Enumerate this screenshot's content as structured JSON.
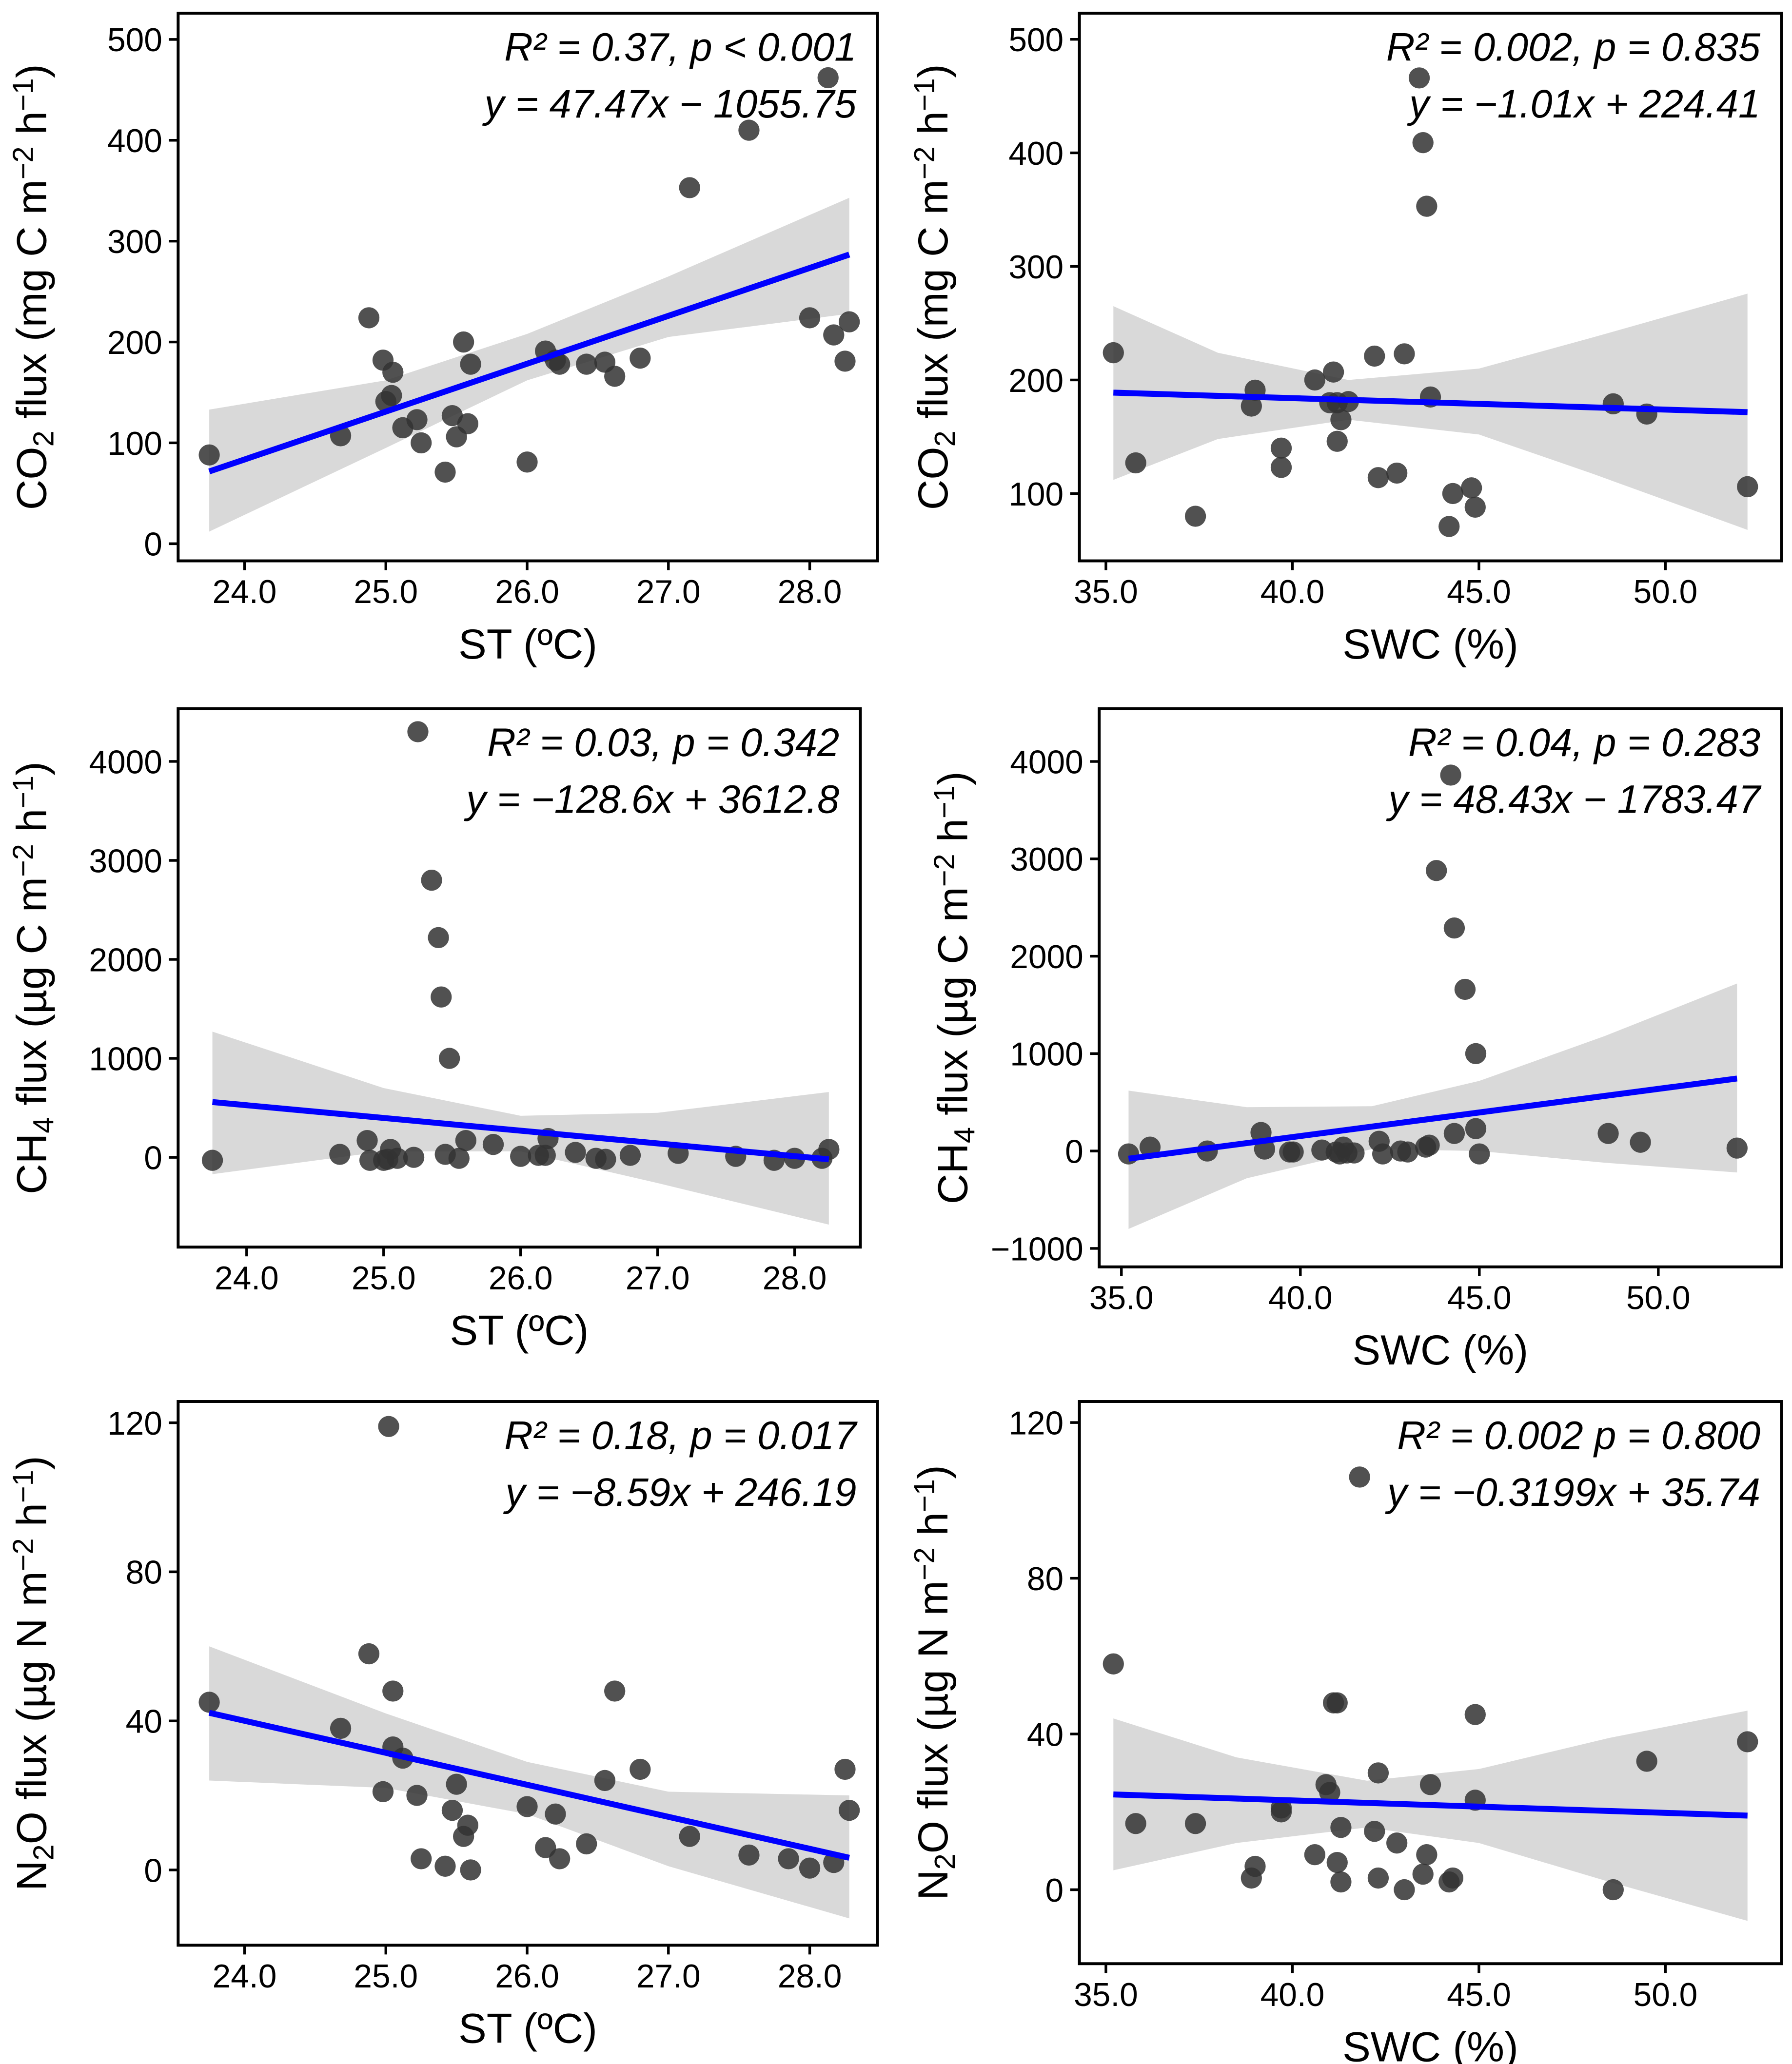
{
  "chart_data": [
    {
      "type": "scatter",
      "xlabel": "ST (ºC)",
      "ylabel": {
        "pre": "CO",
        "sub": "2",
        "mid": " flux (mg C m",
        "sup1": "−2",
        "mid2": " h",
        "sup2": "−1",
        "post": ")"
      },
      "annotation": [
        "R² = 0.37, p < 0.001",
        "y = 47.47x − 1055.75"
      ],
      "xlim": [
        23.53,
        28.48
      ],
      "ylim": [
        -17,
        526
      ],
      "xticks": [
        24,
        25,
        26,
        27,
        28
      ],
      "xtick_labels": [
        "24.0",
        "25.0",
        "26.0",
        "27.0",
        "28.0"
      ],
      "yticks": [
        0,
        100,
        200,
        300,
        400,
        500
      ],
      "ytick_labels": [
        "0",
        "100",
        "200",
        "300",
        "400",
        "500"
      ],
      "fit": {
        "slope": 47.47,
        "intercept": -1055.75,
        "x_range": [
          23.75,
          28.28
        ]
      },
      "ci": [
        [
          23.75,
          12,
          133
        ],
        [
          25.0,
          95,
          162
        ],
        [
          26.0,
          162,
          208
        ],
        [
          27.0,
          205,
          265
        ],
        [
          28.28,
          228,
          343
        ]
      ],
      "points": [
        [
          23.75,
          88
        ],
        [
          24.68,
          107
        ],
        [
          24.88,
          224
        ],
        [
          24.98,
          182
        ],
        [
          25.0,
          141
        ],
        [
          25.04,
          147
        ],
        [
          25.05,
          170
        ],
        [
          25.12,
          115
        ],
        [
          25.22,
          123
        ],
        [
          25.25,
          100
        ],
        [
          25.42,
          71
        ],
        [
          25.47,
          127
        ],
        [
          25.5,
          106
        ],
        [
          25.55,
          200
        ],
        [
          25.58,
          119
        ],
        [
          25.6,
          178
        ],
        [
          26.0,
          81
        ],
        [
          26.13,
          191
        ],
        [
          26.2,
          182
        ],
        [
          26.23,
          178
        ],
        [
          26.42,
          178
        ],
        [
          26.55,
          180
        ],
        [
          26.62,
          166
        ],
        [
          26.8,
          184
        ],
        [
          27.15,
          353
        ],
        [
          27.57,
          410
        ],
        [
          28.0,
          224
        ],
        [
          28.13,
          462
        ],
        [
          28.17,
          207
        ],
        [
          28.25,
          181
        ],
        [
          28.28,
          220
        ]
      ]
    },
    {
      "type": "scatter",
      "xlabel": "SWC (%)",
      "ylabel": {
        "pre": "CO",
        "sub": "2",
        "mid": " flux (mg C m",
        "sup1": "−2",
        "mid2": " h",
        "sup2": "−1",
        "post": ")"
      },
      "annotation": [
        "R² = 0.002, p = 0.835",
        "y = −1.01x + 224.41"
      ],
      "xlim": [
        34.29,
        53.11
      ],
      "ylim": [
        40.7,
        523
      ],
      "xticks": [
        35,
        40,
        45,
        50
      ],
      "xtick_labels": [
        "35.0",
        "40.0",
        "45.0",
        "50.0"
      ],
      "yticks": [
        100,
        200,
        300,
        400,
        500
      ],
      "ytick_labels": [
        "100",
        "200",
        "300",
        "400",
        "500"
      ],
      "fit": {
        "slope": -1.01,
        "intercept": 224.41,
        "x_range": [
          35.2,
          52.2
        ]
      },
      "ci": [
        [
          35.2,
          112,
          265
        ],
        [
          38.0,
          148,
          224
        ],
        [
          41.5,
          165,
          200
        ],
        [
          45.0,
          152,
          210
        ],
        [
          48.0,
          118,
          237
        ],
        [
          52.2,
          68,
          276
        ]
      ],
      "points": [
        [
          35.2,
          224
        ],
        [
          35.8,
          127
        ],
        [
          37.4,
          80
        ],
        [
          38.9,
          177
        ],
        [
          39.0,
          191
        ],
        [
          39.7,
          140
        ],
        [
          39.7,
          123
        ],
        [
          40.6,
          200
        ],
        [
          41.0,
          180
        ],
        [
          41.1,
          207
        ],
        [
          41.2,
          146
        ],
        [
          41.2,
          180
        ],
        [
          41.3,
          165
        ],
        [
          41.5,
          181
        ],
        [
          42.2,
          221
        ],
        [
          42.3,
          114
        ],
        [
          42.8,
          118
        ],
        [
          43.0,
          223
        ],
        [
          43.4,
          466
        ],
        [
          43.5,
          409
        ],
        [
          43.6,
          353
        ],
        [
          43.7,
          185
        ],
        [
          44.2,
          71
        ],
        [
          44.3,
          100
        ],
        [
          44.8,
          105
        ],
        [
          44.9,
          88
        ],
        [
          48.6,
          179
        ],
        [
          49.5,
          170
        ],
        [
          52.2,
          106
        ]
      ]
    },
    {
      "type": "scatter",
      "xlabel": "ST (ºC)",
      "ylabel": {
        "pre": "CH",
        "sub": "4",
        "mid": " flux (µg C m",
        "sup1": "−2",
        "mid2": " h",
        "sup2": "−1",
        "post": ")"
      },
      "annotation": [
        "R² = 0.03, p = 0.342",
        "y = −128.6x + 3612.8"
      ],
      "xlim": [
        23.5,
        28.48
      ],
      "ylim": [
        -907,
        4533
      ],
      "xticks": [
        24,
        25,
        26,
        27,
        28
      ],
      "xtick_labels": [
        "24.0",
        "25.0",
        "26.0",
        "27.0",
        "28.0"
      ],
      "yticks": [
        0,
        1000,
        2000,
        3000,
        4000
      ],
      "ytick_labels": [
        "0",
        "1000",
        "2000",
        "3000",
        "4000"
      ],
      "fit": {
        "slope": -128.6,
        "intercept": 3612.8,
        "x_range": [
          23.75,
          28.25
        ]
      },
      "ci": [
        [
          23.75,
          -170,
          1270
        ],
        [
          25.0,
          60,
          700
        ],
        [
          26.0,
          60,
          420
        ],
        [
          27.0,
          -260,
          450
        ],
        [
          28.25,
          -680,
          660
        ]
      ],
      "points": [
        [
          23.75,
          -30
        ],
        [
          24.68,
          30
        ],
        [
          24.88,
          170
        ],
        [
          24.9,
          -30
        ],
        [
          25.0,
          -30
        ],
        [
          25.03,
          -20
        ],
        [
          25.05,
          80
        ],
        [
          25.1,
          -10
        ],
        [
          25.22,
          0
        ],
        [
          25.25,
          4300
        ],
        [
          25.35,
          2800
        ],
        [
          25.4,
          2220
        ],
        [
          25.42,
          1620
        ],
        [
          25.48,
          1000
        ],
        [
          25.45,
          30
        ],
        [
          25.55,
          -10
        ],
        [
          25.6,
          170
        ],
        [
          25.8,
          130
        ],
        [
          26.0,
          10
        ],
        [
          26.13,
          20
        ],
        [
          26.18,
          20
        ],
        [
          26.2,
          190
        ],
        [
          26.4,
          50
        ],
        [
          26.55,
          -10
        ],
        [
          26.62,
          -20
        ],
        [
          26.8,
          20
        ],
        [
          27.15,
          40
        ],
        [
          27.57,
          10
        ],
        [
          27.85,
          -30
        ],
        [
          28.0,
          -10
        ],
        [
          28.2,
          -10
        ],
        [
          28.25,
          80
        ]
      ]
    },
    {
      "type": "scatter",
      "xlabel": "SWC (%)",
      "ylabel": {
        "pre": "CH",
        "sub": "4",
        "mid": " flux (µg C m",
        "sup1": "−2",
        "mid2": " h",
        "sup2": "−1",
        "post": ")"
      },
      "annotation": [
        "R² = 0.04, p = 0.283",
        "y = 48.43x − 1783.47"
      ],
      "xlim": [
        34.38,
        53.44
      ],
      "ylim": [
        -1190,
        4542
      ],
      "xticks": [
        35,
        40,
        45,
        50
      ],
      "xtick_labels": [
        "35.0",
        "40.0",
        "45.0",
        "50.0"
      ],
      "yticks": [
        -1000,
        0,
        1000,
        2000,
        3000,
        4000
      ],
      "ytick_labels": [
        "−1000",
        "0",
        "1000",
        "2000",
        "3000",
        "4000"
      ],
      "fit": {
        "slope": 48.43,
        "intercept": -1783.47,
        "x_range": [
          35.2,
          52.2
        ]
      },
      "ci": [
        [
          35.2,
          -800,
          620
        ],
        [
          38.5,
          -280,
          450
        ],
        [
          42.0,
          20,
          460
        ],
        [
          45.0,
          0,
          720
        ],
        [
          48.5,
          -120,
          1180
        ],
        [
          52.2,
          -220,
          1720
        ]
      ],
      "points": [
        [
          35.2,
          -30
        ],
        [
          35.8,
          40
        ],
        [
          37.4,
          0
        ],
        [
          38.9,
          190
        ],
        [
          39.0,
          20
        ],
        [
          39.7,
          -10
        ],
        [
          39.8,
          -10
        ],
        [
          40.6,
          10
        ],
        [
          41.0,
          -10
        ],
        [
          41.1,
          -30
        ],
        [
          41.2,
          40
        ],
        [
          41.3,
          -20
        ],
        [
          41.5,
          -20
        ],
        [
          42.2,
          100
        ],
        [
          42.3,
          -30
        ],
        [
          42.8,
          0
        ],
        [
          43.0,
          -10
        ],
        [
          43.5,
          40
        ],
        [
          43.6,
          60
        ],
        [
          43.8,
          2880
        ],
        [
          44.2,
          3860
        ],
        [
          44.3,
          2290
        ],
        [
          44.3,
          180
        ],
        [
          44.6,
          1660
        ],
        [
          44.9,
          1000
        ],
        [
          44.9,
          230
        ],
        [
          45.0,
          -30
        ],
        [
          48.6,
          180
        ],
        [
          49.5,
          90
        ],
        [
          52.2,
          30
        ]
      ]
    },
    {
      "type": "scatter",
      "xlabel": "ST (ºC)",
      "ylabel": {
        "pre": "N",
        "sub": "2",
        "mid": "O flux (µg N m",
        "sup1": "−2",
        "mid2": " h",
        "sup2": "−1",
        "post": ")"
      },
      "annotation": [
        "R² = 0.18, p = 0.017",
        "y = −8.59x + 246.19"
      ],
      "xlim": [
        23.53,
        28.48
      ],
      "ylim": [
        -20.2,
        125.7
      ],
      "xticks": [
        24,
        25,
        26,
        27,
        28
      ],
      "xtick_labels": [
        "24.0",
        "25.0",
        "26.0",
        "27.0",
        "28.0"
      ],
      "yticks": [
        0,
        40,
        80,
        120
      ],
      "ytick_labels": [
        "0",
        "40",
        "80",
        "120"
      ],
      "fit": {
        "slope": -8.59,
        "intercept": 246.19,
        "x_range": [
          23.75,
          28.28
        ]
      },
      "ci": [
        [
          23.75,
          24,
          60
        ],
        [
          25.0,
          22,
          42
        ],
        [
          26.0,
          15,
          29
        ],
        [
          27.0,
          1,
          21
        ],
        [
          28.28,
          -13,
          20
        ]
      ],
      "points": [
        [
          23.75,
          45
        ],
        [
          24.68,
          38
        ],
        [
          24.88,
          58
        ],
        [
          24.98,
          21
        ],
        [
          25.02,
          119
        ],
        [
          25.05,
          48
        ],
        [
          25.05,
          33
        ],
        [
          25.12,
          30
        ],
        [
          25.22,
          20
        ],
        [
          25.25,
          3
        ],
        [
          25.42,
          1
        ],
        [
          25.47,
          16
        ],
        [
          25.5,
          23
        ],
        [
          25.55,
          9
        ],
        [
          25.58,
          12
        ],
        [
          25.6,
          0
        ],
        [
          26.0,
          17
        ],
        [
          26.13,
          6
        ],
        [
          26.2,
          15
        ],
        [
          26.23,
          3
        ],
        [
          26.42,
          7
        ],
        [
          26.55,
          24
        ],
        [
          26.62,
          48
        ],
        [
          26.8,
          27
        ],
        [
          27.15,
          9
        ],
        [
          27.57,
          4
        ],
        [
          27.85,
          3
        ],
        [
          28.0,
          0.5
        ],
        [
          28.17,
          2
        ],
        [
          28.25,
          27
        ],
        [
          28.28,
          16
        ]
      ]
    },
    {
      "type": "scatter",
      "xlabel": "SWC (%)",
      "ylabel": {
        "pre": "N",
        "sub": "2",
        "mid": "O flux (µg N m",
        "sup1": "−2",
        "mid2": " h",
        "sup2": "−1",
        "post": ")"
      },
      "annotation": [
        "R² = 0.002 p = 0.800",
        "y = −0.3199x + 35.74"
      ],
      "xlim": [
        34.29,
        53.11
      ],
      "ylim": [
        -19,
        125.4
      ],
      "xticks": [
        35,
        40,
        45,
        50
      ],
      "xtick_labels": [
        "35.0",
        "40.0",
        "45.0",
        "50.0"
      ],
      "yticks": [
        0,
        40,
        80,
        120
      ],
      "ytick_labels": [
        "0",
        "40",
        "80",
        "120"
      ],
      "fit": {
        "slope": -0.3199,
        "intercept": 35.74,
        "x_range": [
          35.2,
          52.2
        ]
      },
      "ci": [
        [
          35.2,
          5,
          44
        ],
        [
          38.5,
          12,
          34
        ],
        [
          42.0,
          16,
          28
        ],
        [
          45.0,
          12,
          31
        ],
        [
          48.5,
          2,
          39
        ],
        [
          52.2,
          -8,
          46
        ]
      ],
      "points": [
        [
          35.2,
          58
        ],
        [
          35.8,
          17
        ],
        [
          37.4,
          17
        ],
        [
          38.9,
          3
        ],
        [
          39.0,
          6
        ],
        [
          39.7,
          21
        ],
        [
          39.7,
          20
        ],
        [
          40.6,
          9
        ],
        [
          40.9,
          27
        ],
        [
          41.0,
          25
        ],
        [
          41.1,
          48
        ],
        [
          41.2,
          7
        ],
        [
          41.2,
          48
        ],
        [
          41.3,
          2
        ],
        [
          41.3,
          16
        ],
        [
          41.8,
          106
        ],
        [
          42.2,
          15
        ],
        [
          42.3,
          30
        ],
        [
          42.3,
          3
        ],
        [
          42.8,
          12
        ],
        [
          43.0,
          0
        ],
        [
          43.5,
          4
        ],
        [
          43.6,
          9
        ],
        [
          43.7,
          27
        ],
        [
          44.2,
          2
        ],
        [
          44.3,
          3
        ],
        [
          44.9,
          45
        ],
        [
          44.9,
          23
        ],
        [
          48.6,
          0
        ],
        [
          49.5,
          33
        ],
        [
          52.2,
          38
        ]
      ]
    }
  ],
  "colors": {
    "fit_line": "#0000ff",
    "ci_band": "#d9d9d9",
    "points": "#333333"
  }
}
